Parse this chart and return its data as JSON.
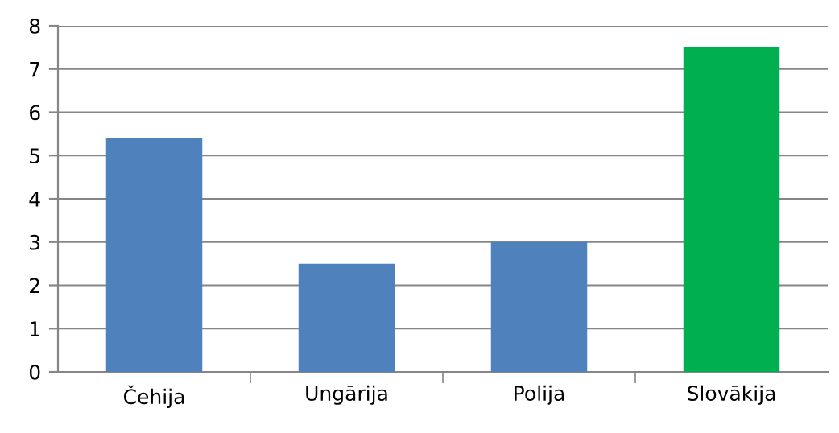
{
  "chart_data": {
    "type": "bar",
    "categories": [
      "Čehija",
      "Ungārija",
      "Polija",
      "Slovākija"
    ],
    "values": [
      5.4,
      2.5,
      3.0,
      7.5
    ],
    "colors": [
      "#4f81bd",
      "#4f81bd",
      "#4f81bd",
      "#00b050"
    ],
    "ylim": [
      0,
      8
    ],
    "yticks": [
      0,
      1,
      2,
      3,
      4,
      5,
      6,
      7,
      8
    ],
    "grid": "y",
    "legend": false
  }
}
